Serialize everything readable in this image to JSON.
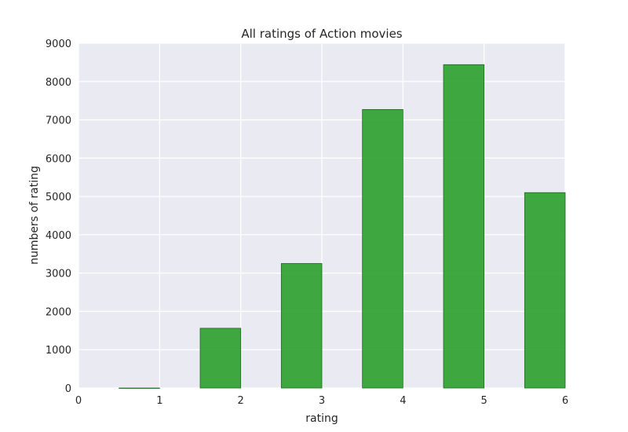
{
  "chart_data": {
    "type": "bar",
    "title": "All ratings of Action movies",
    "xlabel": "rating",
    "ylabel": "numbers of rating",
    "x": [
      0,
      1,
      2,
      3,
      4,
      5
    ],
    "values": [
      0,
      1560,
      3250,
      7270,
      8440,
      5100
    ],
    "bar_width": 0.5,
    "xlim": [
      0,
      6
    ],
    "ylim": [
      0,
      9000
    ],
    "xticks": [
      0,
      1,
      2,
      3,
      4,
      5,
      6
    ],
    "yticks": [
      0,
      1000,
      2000,
      3000,
      4000,
      5000,
      6000,
      7000,
      8000,
      9000
    ],
    "grid": true,
    "colors": {
      "bar": "#2ca02c",
      "bar_edge": "#1f6b1f",
      "background": "#eaeaf2",
      "grid": "#ffffff"
    }
  }
}
